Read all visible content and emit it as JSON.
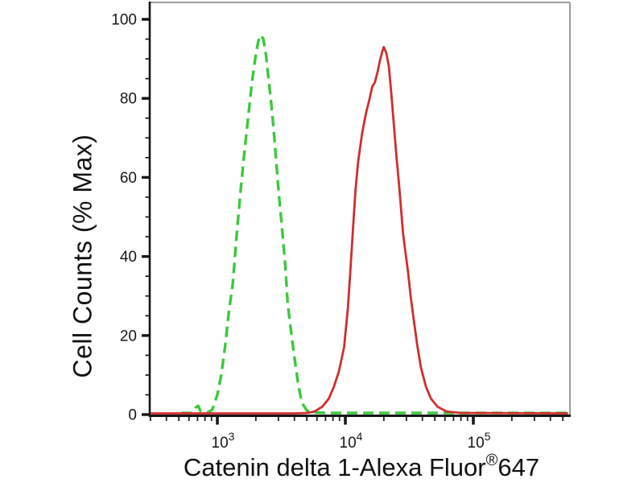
{
  "chart_data": {
    "type": "line",
    "subtype": "flow-cytometry-overlay-histogram",
    "title": "",
    "xlabel": {
      "before_sup": "Catenin delta 1-Alexa Fluor",
      "sup": "®",
      "after_sup": "647"
    },
    "ylabel": "Cell Counts (% Max)",
    "x_scale": "log10",
    "x_range_log10": [
      2.47,
      5.76
    ],
    "ylim": [
      0,
      104
    ],
    "grid": false,
    "legend": "none",
    "y_ticks": [
      {
        "label": "0",
        "value": 0
      },
      {
        "label": "20",
        "value": 20
      },
      {
        "label": "40",
        "value": 40
      },
      {
        "label": "60",
        "value": 60
      },
      {
        "label": "80",
        "value": 80
      },
      {
        "label": "100",
        "value": 100
      }
    ],
    "y_minor_step": 5,
    "x_ticks": [
      {
        "base": "10",
        "exp": "3",
        "log10": 3
      },
      {
        "base": "10",
        "exp": "4",
        "log10": 4
      },
      {
        "base": "10",
        "exp": "5",
        "log10": 5
      }
    ],
    "colors": {
      "axis": "#161616",
      "frame": "#9a9a9a",
      "text": "#161616",
      "green_series": "#3cc83c",
      "red_series": "#d22d2d"
    },
    "series": [
      {
        "name": "dashed-green-curve",
        "color": "#3cc83c",
        "style": "dashed",
        "dash": "13 7",
        "width": 3.4,
        "peak": {
          "x_value": 2100,
          "pct_max": 96
        },
        "points_log10_pct": [
          [
            2.72,
            0.4
          ],
          [
            2.8,
            0.4
          ],
          [
            2.83,
            1.8
          ],
          [
            2.85,
            2.2
          ],
          [
            2.87,
            0.8
          ],
          [
            2.92,
            0.5
          ],
          [
            2.96,
            1.2
          ],
          [
            3.0,
            5
          ],
          [
            3.03,
            10
          ],
          [
            3.06,
            17
          ],
          [
            3.09,
            26
          ],
          [
            3.12,
            33
          ],
          [
            3.15,
            45
          ],
          [
            3.18,
            56
          ],
          [
            3.21,
            66
          ],
          [
            3.24,
            75
          ],
          [
            3.27,
            84
          ],
          [
            3.3,
            91
          ],
          [
            3.32,
            94.5
          ],
          [
            3.34,
            96
          ],
          [
            3.36,
            95
          ],
          [
            3.38,
            91
          ],
          [
            3.4,
            85
          ],
          [
            3.42,
            79
          ],
          [
            3.44,
            72
          ],
          [
            3.46,
            64
          ],
          [
            3.48,
            56
          ],
          [
            3.5,
            49
          ],
          [
            3.53,
            38
          ],
          [
            3.55,
            28
          ],
          [
            3.58,
            20
          ],
          [
            3.6,
            15
          ],
          [
            3.63,
            8
          ],
          [
            3.66,
            3
          ],
          [
            3.7,
            1
          ],
          [
            3.76,
            0.5
          ],
          [
            3.9,
            0.4
          ],
          [
            5.74,
            0.4
          ]
        ]
      },
      {
        "name": "solid-red-curve",
        "color": "#d22d2d",
        "style": "solid",
        "dash": "",
        "width": 2.8,
        "peak": {
          "x_value": 20000,
          "pct_max": 93
        },
        "points_log10_pct": [
          [
            2.48,
            0.3
          ],
          [
            3.6,
            0.3
          ],
          [
            3.7,
            0.4
          ],
          [
            3.76,
            0.8
          ],
          [
            3.82,
            2
          ],
          [
            3.87,
            4
          ],
          [
            3.91,
            7
          ],
          [
            3.95,
            11
          ],
          [
            3.99,
            17
          ],
          [
            4.02,
            27
          ],
          [
            4.04,
            37
          ],
          [
            4.06,
            47
          ],
          [
            4.08,
            57
          ],
          [
            4.1,
            64
          ],
          [
            4.13,
            71
          ],
          [
            4.16,
            76
          ],
          [
            4.19,
            80
          ],
          [
            4.21,
            83
          ],
          [
            4.23,
            84
          ],
          [
            4.25,
            86.5
          ],
          [
            4.27,
            89.5
          ],
          [
            4.29,
            92
          ],
          [
            4.3,
            93
          ],
          [
            4.32,
            91.5
          ],
          [
            4.34,
            88
          ],
          [
            4.36,
            81
          ],
          [
            4.38,
            73
          ],
          [
            4.4,
            65
          ],
          [
            4.42,
            58
          ],
          [
            4.45,
            46
          ],
          [
            4.47,
            41
          ],
          [
            4.49,
            36
          ],
          [
            4.51,
            30
          ],
          [
            4.53,
            25
          ],
          [
            4.56,
            18
          ],
          [
            4.59,
            12
          ],
          [
            4.63,
            7
          ],
          [
            4.67,
            4
          ],
          [
            4.72,
            2
          ],
          [
            4.79,
            0.8
          ],
          [
            4.9,
            0.4
          ],
          [
            5.74,
            0.3
          ]
        ]
      }
    ]
  }
}
